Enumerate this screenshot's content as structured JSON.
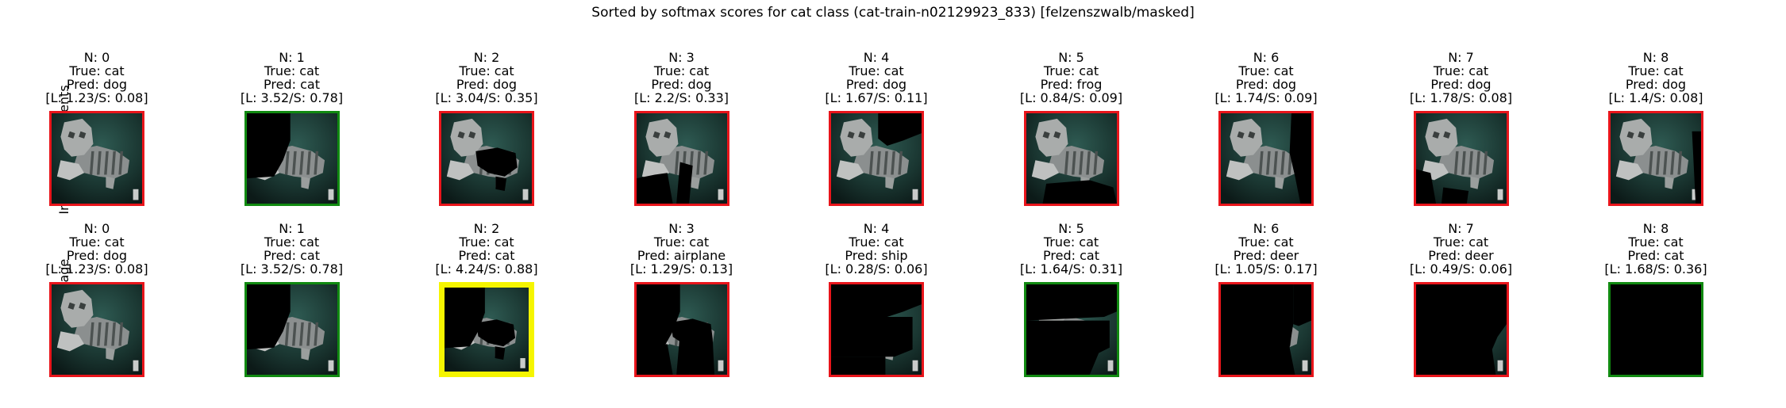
{
  "title": "Sorted by softmax scores for cat class (cat-train-n02129923_833) [felzenszwalb/masked]",
  "rows": [
    {
      "label": "Individual Segments",
      "panels": [
        {
          "n": "N: 0",
          "true": "True: cat",
          "pred": "Pred: dog",
          "scores": "[L: 1.23/S: 0.08]",
          "border": "#e8151b",
          "mask": "none"
        },
        {
          "n": "N: 1",
          "true": "True: cat",
          "pred": "Pred: cat",
          "scores": "[L: 3.52/S: 0.78]",
          "border": "#118a11",
          "mask": "head"
        },
        {
          "n": "N: 2",
          "true": "True: cat",
          "pred": "Pred: dog",
          "scores": "[L: 3.04/S: 0.35]",
          "border": "#e8151b",
          "mask": "body"
        },
        {
          "n": "N: 3",
          "true": "True: cat",
          "pred": "Pred: dog",
          "scores": "[L: 2.2/S: 0.33]",
          "border": "#e8151b",
          "mask": "lower-left"
        },
        {
          "n": "N: 4",
          "true": "True: cat",
          "pred": "Pred: dog",
          "scores": "[L: 1.67/S: 0.11]",
          "border": "#e8151b",
          "mask": "upper-right"
        },
        {
          "n": "N: 5",
          "true": "True: cat",
          "pred": "Pred: frog",
          "scores": "[L: 0.84/S: 0.09]",
          "border": "#e8151b",
          "mask": "bottom"
        },
        {
          "n": "N: 6",
          "true": "True: cat",
          "pred": "Pred: dog",
          "scores": "[L: 1.74/S: 0.09]",
          "border": "#e8151b",
          "mask": "right"
        },
        {
          "n": "N: 7",
          "true": "True: cat",
          "pred": "Pred: dog",
          "scores": "[L: 1.78/S: 0.08]",
          "border": "#e8151b",
          "mask": "left-bottom"
        },
        {
          "n": "N: 8",
          "true": "True: cat",
          "pred": "Pred: dog",
          "scores": "[L: 1.4/S: 0.08]",
          "border": "#e8151b",
          "mask": "right-strip"
        }
      ]
    },
    {
      "label": "Cumulative Image",
      "panels": [
        {
          "n": "N: 0",
          "true": "True: cat",
          "pred": "Pred: dog",
          "scores": "[L: 1.23/S: 0.08]",
          "border": "#e8151b",
          "mask": "none"
        },
        {
          "n": "N: 1",
          "true": "True: cat",
          "pred": "Pred: cat",
          "scores": "[L: 3.52/S: 0.78]",
          "border": "#118a11",
          "mask": "head"
        },
        {
          "n": "N: 2",
          "true": "True: cat",
          "pred": "Pred: cat",
          "scores": "[L: 4.24/S: 0.88]",
          "border": "#f5f500",
          "mask": "cum2"
        },
        {
          "n": "N: 3",
          "true": "True: cat",
          "pred": "Pred: airplane",
          "scores": "[L: 1.29/S: 0.13]",
          "border": "#e8151b",
          "mask": "cum3"
        },
        {
          "n": "N: 4",
          "true": "True: cat",
          "pred": "Pred: ship",
          "scores": "[L: 0.28/S: 0.06]",
          "border": "#e8151b",
          "mask": "cum4"
        },
        {
          "n": "N: 5",
          "true": "True: cat",
          "pred": "Pred: cat",
          "scores": "[L: 1.64/S: 0.31]",
          "border": "#118a11",
          "mask": "cum5"
        },
        {
          "n": "N: 6",
          "true": "True: cat",
          "pred": "Pred: deer",
          "scores": "[L: 1.05/S: 0.17]",
          "border": "#e8151b",
          "mask": "cum6"
        },
        {
          "n": "N: 7",
          "true": "True: cat",
          "pred": "Pred: deer",
          "scores": "[L: 0.49/S: 0.06]",
          "border": "#e8151b",
          "mask": "cum7"
        },
        {
          "n": "N: 8",
          "true": "True: cat",
          "pred": "Pred: cat",
          "scores": "[L: 1.68/S: 0.36]",
          "border": "#118a11",
          "mask": "all"
        }
      ]
    }
  ]
}
